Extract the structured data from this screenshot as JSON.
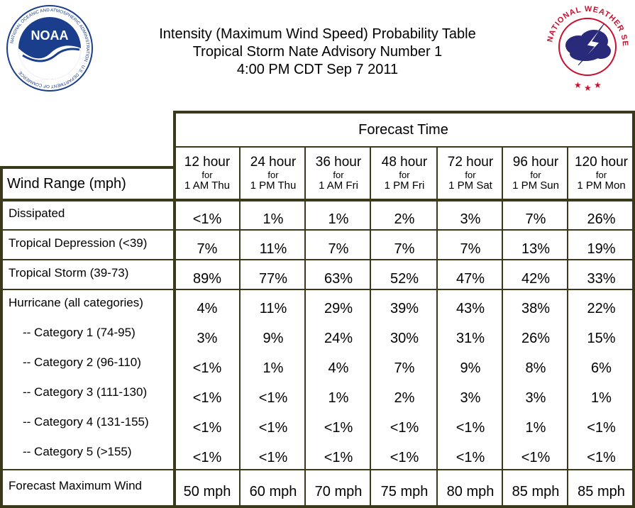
{
  "header": {
    "title_line1": "Intensity (Maximum Wind Speed) Probability Table",
    "title_line2": "Tropical Storm Nate Advisory Number 1",
    "title_line3": "4:00 PM CDT Sep 7 2011",
    "noaa_logo_text": "NOAA",
    "noaa_ring_text": "NATIONAL OCEANIC AND ATMOSPHERIC ADMINISTRATION · U.S. DEPARTMENT OF COMMERCE",
    "nws_ring_text": "NATIONAL WEATHER SERVICE"
  },
  "table": {
    "forecast_time_label": "Forecast Time",
    "wind_range_label": "Wind Range (mph)",
    "columns": [
      {
        "hours": "12 hour",
        "for": "for",
        "when": "1 AM Thu"
      },
      {
        "hours": "24 hour",
        "for": "for",
        "when": "1 PM Thu"
      },
      {
        "hours": "36 hour",
        "for": "for",
        "when": "1 AM Fri"
      },
      {
        "hours": "48 hour",
        "for": "for",
        "when": "1 PM Fri"
      },
      {
        "hours": "72 hour",
        "for": "for",
        "when": "1 PM Sat"
      },
      {
        "hours": "96 hour",
        "for": "for",
        "when": "1 PM Sun"
      },
      {
        "hours": "120 hour",
        "for": "for",
        "when": "1 PM Mon"
      }
    ],
    "rows": [
      {
        "label": "Dissipated",
        "values": [
          "<1%",
          "1%",
          "1%",
          "2%",
          "3%",
          "7%",
          "26%"
        ]
      },
      {
        "label": "Tropical Depression (<39)",
        "values": [
          "7%",
          "11%",
          "7%",
          "7%",
          "7%",
          "13%",
          "19%"
        ]
      },
      {
        "label": "Tropical Storm (39-73)",
        "values": [
          "89%",
          "77%",
          "63%",
          "52%",
          "47%",
          "42%",
          "33%"
        ]
      },
      {
        "label": "Hurricane (all categories)",
        "values": [
          "4%",
          "11%",
          "29%",
          "39%",
          "43%",
          "38%",
          "22%"
        ]
      },
      {
        "label": "-- Category 1 (74-95)",
        "values": [
          "3%",
          "9%",
          "24%",
          "30%",
          "31%",
          "26%",
          "15%"
        ]
      },
      {
        "label": "-- Category 2 (96-110)",
        "values": [
          "<1%",
          "1%",
          "4%",
          "7%",
          "9%",
          "8%",
          "6%"
        ]
      },
      {
        "label": "-- Category 3 (111-130)",
        "values": [
          "<1%",
          "<1%",
          "1%",
          "2%",
          "3%",
          "3%",
          "1%"
        ]
      },
      {
        "label": "-- Category 4 (131-155)",
        "values": [
          "<1%",
          "<1%",
          "<1%",
          "<1%",
          "<1%",
          "1%",
          "<1%"
        ]
      },
      {
        "label": "-- Category 5 (>155)",
        "values": [
          "<1%",
          "<1%",
          "<1%",
          "<1%",
          "<1%",
          "<1%",
          "<1%"
        ]
      },
      {
        "label": "Forecast Maximum Wind",
        "values": [
          "50 mph",
          "60 mph",
          "70 mph",
          "75 mph",
          "80 mph",
          "85 mph",
          "85 mph"
        ]
      }
    ]
  },
  "colors": {
    "frame": "#3a3a1a",
    "noaa_blue": "#1a3e8c",
    "nws_red": "#c8102e"
  }
}
